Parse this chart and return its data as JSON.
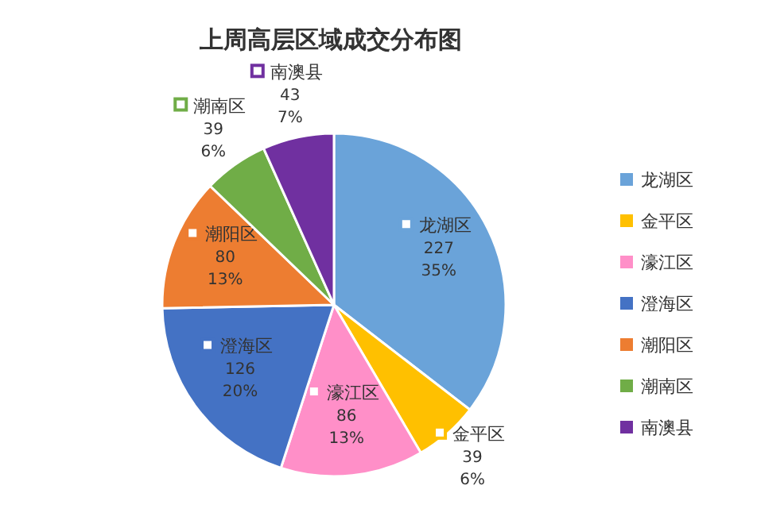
{
  "chart_data": {
    "type": "pie",
    "title": "上周高层区域成交分布图",
    "categories": [
      "龙湖区",
      "金平区",
      "濠江区",
      "澄海区",
      "潮阳区",
      "潮南区",
      "南澳县"
    ],
    "values": [
      227,
      39,
      86,
      126,
      80,
      39,
      43
    ],
    "value_labels": [
      "227\n35%",
      "39\n6%",
      "86\n13%",
      "126\n20%",
      "80\n13%",
      "39\n6%",
      "43\n7%"
    ],
    "colors": [
      "#6aa3d9",
      "#ffc000",
      "#ff8fc8",
      "#4472c4",
      "#ed7d31",
      "#70ad47",
      "#7030a0"
    ],
    "legend": "right"
  }
}
